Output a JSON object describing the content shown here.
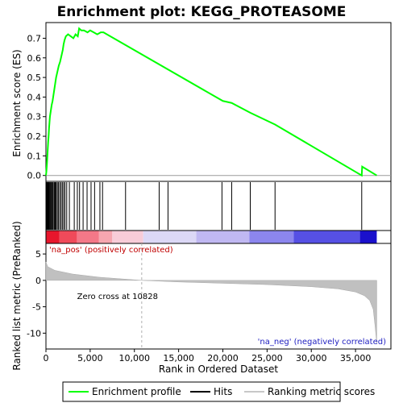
{
  "chart_data": {
    "type": "line",
    "title": "Enrichment plot: KEGG_PROTEASOME",
    "xlabel": "Rank in Ordered Dataset",
    "xlim": [
      0,
      39000
    ],
    "x_ticks": [
      0,
      5000,
      10000,
      15000,
      20000,
      25000,
      30000,
      35000
    ],
    "x_tick_labels": [
      "0",
      "5,000",
      "10,000",
      "15,000",
      "20,000",
      "25,000",
      "30,000",
      "35,000"
    ],
    "top_panel": {
      "ylabel": "Enrichment score (ES)",
      "ylim": [
        -0.03,
        0.78
      ],
      "y_ticks": [
        0.0,
        0.1,
        0.2,
        0.3,
        0.4,
        0.5,
        0.6,
        0.7
      ],
      "y_tick_labels": [
        "0.0",
        "0.1",
        "0.2",
        "0.3",
        "0.4",
        "0.5",
        "0.6",
        "0.7"
      ],
      "series": [
        {
          "name": "Enrichment profile",
          "color": "#00ff00",
          "x": [
            0,
            50,
            100,
            150,
            200,
            250,
            300,
            350,
            400,
            450,
            550,
            650,
            750,
            850,
            950,
            1050,
            1150,
            1300,
            1450,
            1600,
            1750,
            1900,
            2000,
            2100,
            2250,
            2500,
            3100,
            3350,
            3600,
            3750,
            4000,
            4300,
            4700,
            5000,
            5400,
            5800,
            6200,
            6500,
            20000,
            21000,
            23100,
            25900,
            35700,
            35750,
            37400
          ],
          "y": [
            0.0,
            0.02,
            0.05,
            0.09,
            0.13,
            0.17,
            0.2,
            0.24,
            0.27,
            0.3,
            0.33,
            0.36,
            0.38,
            0.41,
            0.44,
            0.47,
            0.5,
            0.53,
            0.56,
            0.58,
            0.61,
            0.64,
            0.67,
            0.69,
            0.71,
            0.72,
            0.7,
            0.72,
            0.71,
            0.75,
            0.74,
            0.74,
            0.73,
            0.74,
            0.73,
            0.72,
            0.73,
            0.73,
            0.38,
            0.37,
            0.32,
            0.26,
            0.0,
            0.045,
            0.0
          ]
        }
      ]
    },
    "hits_panel": {
      "hit_positions": [
        60,
        120,
        180,
        240,
        320,
        400,
        480,
        560,
        650,
        740,
        830,
        950,
        1050,
        1150,
        1280,
        1400,
        1550,
        1700,
        1850,
        2000,
        2150,
        2350,
        2650,
        3200,
        3550,
        3800,
        4200,
        4650,
        5100,
        5500,
        6100,
        6400,
        9000,
        12800,
        13800,
        19900,
        21000,
        23100,
        25900,
        35700
      ]
    },
    "metric_panel": {
      "ylabel": "Ranked list metric (PreRanked)",
      "ylim": [
        -13,
        7
      ],
      "y_ticks": [
        5,
        0,
        -5,
        -10
      ],
      "y_tick_labels": [
        "5",
        "0",
        "-5",
        "-10"
      ],
      "zero_cross": 10828,
      "zero_cross_label": "Zero cross at 10828",
      "pos_label": "'na_pos' (positively correlated)",
      "neg_label": "'na_neg' (negatively correlated)",
      "profile_x": [
        0,
        200,
        1000,
        3000,
        6000,
        10828,
        15000,
        25000,
        30000,
        33000,
        35000,
        36000,
        36600,
        37000,
        37200,
        37400
      ],
      "profile_y": [
        3.5,
        2.6,
        1.9,
        1.2,
        0.6,
        0.0,
        -0.3,
        -0.8,
        -1.2,
        -1.6,
        -2.2,
        -2.9,
        -3.8,
        -5.5,
        -8.5,
        -12.0
      ]
    },
    "heat_bar": {
      "segments": [
        {
          "from": 0,
          "to": 1500,
          "color": "#e8162c"
        },
        {
          "from": 1500,
          "to": 3500,
          "color": "#f04a5a"
        },
        {
          "from": 3500,
          "to": 6000,
          "color": "#f47888"
        },
        {
          "from": 6000,
          "to": 7500,
          "color": "#f6a6b0"
        },
        {
          "from": 7500,
          "to": 11000,
          "color": "#f8ccd8"
        },
        {
          "from": 11000,
          "to": 17000,
          "color": "#dcd8f6"
        },
        {
          "from": 17000,
          "to": 23000,
          "color": "#c0b8f2"
        },
        {
          "from": 23000,
          "to": 28000,
          "color": "#8c86ee"
        },
        {
          "from": 28000,
          "to": 35500,
          "color": "#5650e4"
        },
        {
          "from": 35500,
          "to": 37400,
          "color": "#1a10cc"
        }
      ]
    },
    "legend": [
      {
        "label": "Enrichment profile",
        "color": "#00ff00"
      },
      {
        "label": "Hits",
        "color": "#000000"
      },
      {
        "label": "Ranking metric scores",
        "color": "#c8c8c8"
      }
    ]
  }
}
